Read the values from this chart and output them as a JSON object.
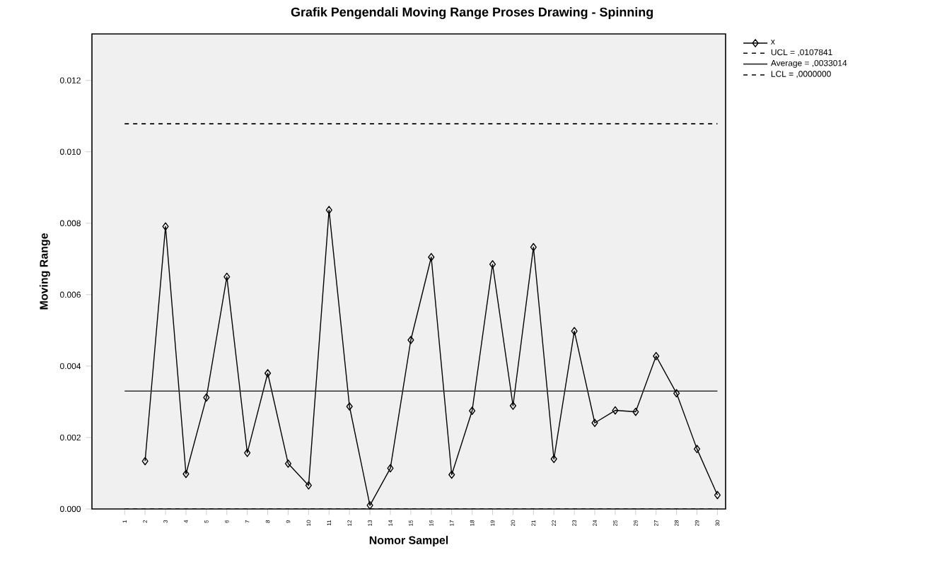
{
  "chart_data": {
    "type": "line",
    "title": "Grafik Pengendali Moving Range Proses Drawing - Spinning",
    "xlabel": "Nomor Sampel",
    "ylabel": "Moving Range",
    "categories": [
      "1",
      "2",
      "3",
      "4",
      "5",
      "6",
      "7",
      "8",
      "9",
      "10",
      "11",
      "12",
      "13",
      "14",
      "15",
      "16",
      "17",
      "18",
      "19",
      "20",
      "21",
      "22",
      "23",
      "24",
      "25",
      "26",
      "27",
      "28",
      "29",
      "30"
    ],
    "series": [
      {
        "name": "x",
        "color": "#000000",
        "values": [
          null,
          0.00134,
          0.00791,
          0.00098,
          0.00312,
          0.0065,
          0.00157,
          0.0038,
          0.00127,
          0.00066,
          0.00837,
          0.00287,
          0.0001,
          0.00114,
          0.00473,
          0.00705,
          0.00096,
          0.00275,
          0.00685,
          0.00289,
          0.00733,
          0.0014,
          0.00498,
          0.00241,
          0.00276,
          0.00272,
          0.00428,
          0.00324,
          0.00168,
          0.00039
        ]
      }
    ],
    "ylim": [
      0,
      0.0133
    ],
    "yticks": [
      {
        "value": 0,
        "label": "0.000"
      },
      {
        "value": 0.002,
        "label": "0.002"
      },
      {
        "value": 0.004,
        "label": "0.004"
      },
      {
        "value": 0.006,
        "label": "0.006"
      },
      {
        "value": 0.008,
        "label": "0.008"
      },
      {
        "value": 0.01,
        "label": "0.010"
      },
      {
        "value": 0.012,
        "label": "0.012"
      }
    ],
    "ref_lines": [
      {
        "axis": "y",
        "value": 0.0107841,
        "label": "UCL = ,0107841",
        "line_style": "dashed",
        "color": "#000000"
      },
      {
        "axis": "y",
        "value": 0.0033014,
        "label": "Average = ,0033014",
        "line_style": "solid",
        "color": "#333333"
      },
      {
        "axis": "y",
        "value": 0.0,
        "label": "LCL = ,0000000",
        "line_style": "dashed",
        "color": "#000000"
      }
    ],
    "marker": "diamond",
    "line_style": "solid",
    "grid": false,
    "legend": "top right"
  }
}
